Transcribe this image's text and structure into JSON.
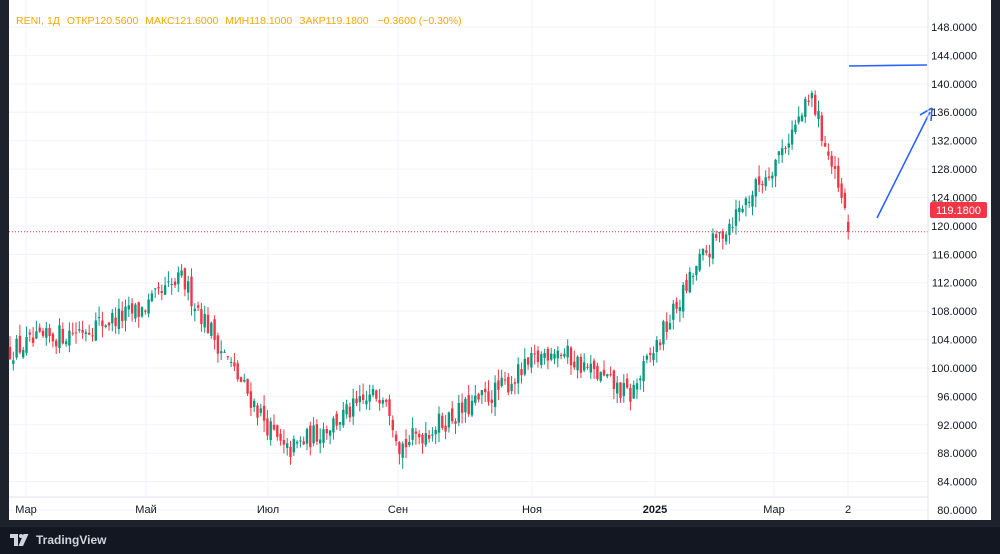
{
  "legend": {
    "symbol": "RENI",
    "interval": "1Д",
    "open_label": "ОТКР",
    "open": "120.5600",
    "high_label": "МАКС",
    "high": "121.6000",
    "low_label": "МИН",
    "low": "118.1000",
    "close_label": "ЗАКР",
    "close": "119.1800",
    "change": "−0.3600 (−0.30%)"
  },
  "price_badge": "119.1800",
  "branding": "TradingView",
  "colors": {
    "up": "#089981",
    "down": "#f23645",
    "background": "#ffffff",
    "grid": "#f0f3fa",
    "axis_text": "#131722",
    "legend_text": "#f7a600",
    "drawing": "#2962ff",
    "price_line": "#f23645"
  },
  "chart_data": {
    "type": "candlestick",
    "title": "RENI",
    "interval": "1Д",
    "x_labels": [
      "Мар",
      "Май",
      "Июл",
      "Сен",
      "Ноя",
      "2025",
      "Мар",
      "2"
    ],
    "y_ticks": [
      "80.0000",
      "84.0000",
      "88.0000",
      "92.0000",
      "96.0000",
      "100.0000",
      "104.0000",
      "108.0000",
      "112.0000",
      "116.0000",
      "120.0000",
      "124.0000",
      "128.0000",
      "132.0000",
      "136.0000",
      "140.0000",
      "144.0000",
      "148.0000"
    ],
    "ylim": [
      78.6,
      151.8
    ],
    "grid": true,
    "current_price": 119.18,
    "anchors": [
      {
        "date": "Мар",
        "close": 102.5
      },
      {
        "date": "Май",
        "close": 108.0
      },
      {
        "date": "Май",
        "close": 112.5
      },
      {
        "date": "Июл",
        "close": 100.0
      },
      {
        "date": "Июл",
        "close": 88.0
      },
      {
        "date": "Сен",
        "close": 97.0
      },
      {
        "date": "Сен",
        "close": 89.0
      },
      {
        "date": "Ноя",
        "close": 97.0
      },
      {
        "date": "Ноя",
        "close": 103.0
      },
      {
        "date": "2025",
        "close": 96.0
      },
      {
        "date": "2025",
        "close": 115.0
      },
      {
        "date": "Мар",
        "close": 128.0
      },
      {
        "date": "Мар",
        "close": 138.0
      },
      {
        "date": "2",
        "close": 119.18
      }
    ]
  }
}
